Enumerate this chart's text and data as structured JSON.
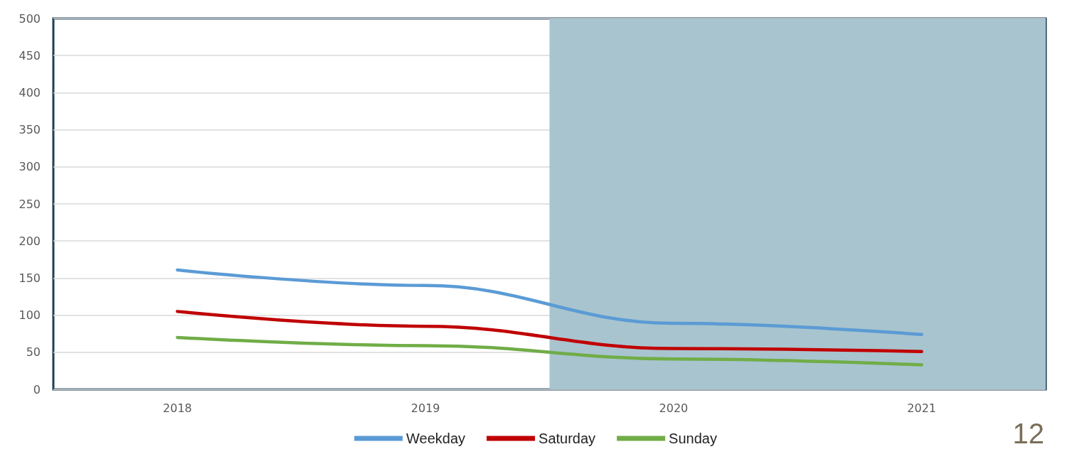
{
  "chart_data": {
    "type": "line",
    "x": [
      2018,
      2019,
      2020,
      2021
    ],
    "xlim": [
      2017.5,
      2021.5
    ],
    "xticks": [
      2018,
      2019,
      2020,
      2021
    ],
    "ylim": [
      0,
      500
    ],
    "yticks": [
      0,
      50,
      100,
      150,
      200,
      250,
      300,
      350,
      400,
      450,
      500
    ],
    "grid": "y",
    "legend": "bottom",
    "marker": "none",
    "line_style": "solid",
    "series": [
      {
        "name": "Weekday",
        "color": "#5b9bd5",
        "values": [
          161,
          140,
          89,
          74
        ]
      },
      {
        "name": "Saturday",
        "color": "#c00000",
        "values": [
          105,
          85,
          55,
          51
        ]
      },
      {
        "name": "Sunday",
        "color": "#70ad47",
        "values": [
          70,
          59,
          41,
          33
        ]
      }
    ],
    "bands": [
      {
        "axis": "x",
        "from": 2019.5,
        "to": 2021.5,
        "color": "#a8c4cf"
      }
    ],
    "annotations": [
      "12"
    ]
  }
}
